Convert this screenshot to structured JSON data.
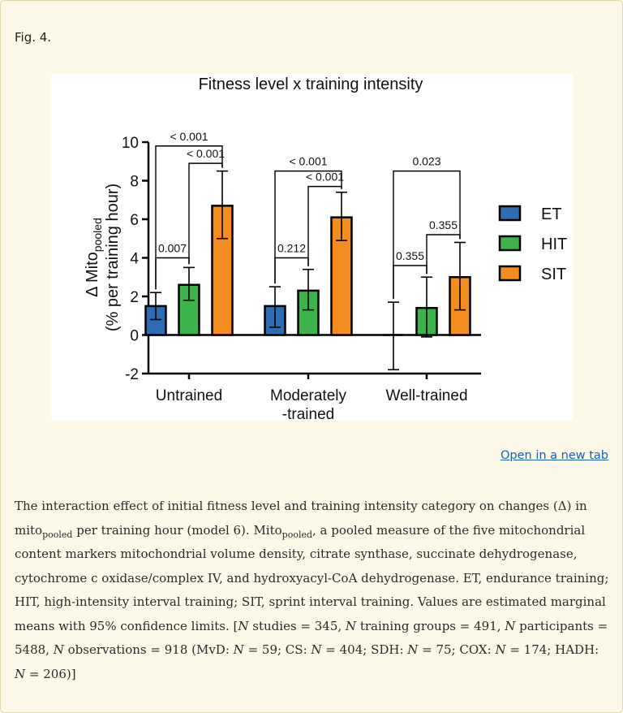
{
  "fig_label": "Fig. 4.",
  "open_link": "Open in a new tab",
  "caption": {
    "p1a": "The interaction effect of initial fitness level and training intensity category on changes (Δ) in mito",
    "p1sub": "pooled",
    "p1b": " per training hour (model 6). Mito",
    "p1sub2": "pooled",
    "p1c": ", a pooled measure of the five mitochondrial content markers mitochondrial volume density, citrate synthase, succinate dehydrogenase, cytochrome c oxidase/complex IV, and hydroxyacyl-CoA dehydrogenase. ET, endurance training; HIT, high-intensity interval training; SIT, sprint interval training. Values are estimated marginal means with 95% confidence limits. [",
    "n": "N",
    "s1": " studies = 345, ",
    "s2": " training groups = 491, ",
    "s3": " participants = 5488, ",
    "s4": " observations = 918 (MvD: ",
    "s5": " = 59; CS: ",
    "s6": " = 404; SDH: ",
    "s7": " = 75; COX: ",
    "s8": " = 174; HADH: ",
    "s9": " = 206)]"
  },
  "chart_data": {
    "type": "bar",
    "title": "Fitness level x training intensity",
    "ylabel_main": "Δ Mito",
    "ylabel_sub": "pooled",
    "ylabel2": "(% per training hour)",
    "ylim": [
      -2,
      10
    ],
    "yticks": [
      -2,
      0,
      2,
      4,
      6,
      8,
      10
    ],
    "categories": [
      "Untrained",
      "Moderately",
      "Well-trained"
    ],
    "category_line2": [
      "",
      "-trained",
      ""
    ],
    "series": [
      {
        "name": "ET",
        "color": "#2e6db4",
        "values": [
          1.5,
          1.5,
          0.0
        ],
        "ci_low": [
          0.8,
          0.4,
          -1.8
        ],
        "ci_high": [
          2.2,
          2.5,
          1.7
        ]
      },
      {
        "name": "HIT",
        "color": "#3cb44b",
        "values": [
          2.6,
          2.3,
          1.4
        ],
        "ci_low": [
          1.8,
          1.3,
          -0.1
        ],
        "ci_high": [
          3.5,
          3.4,
          3.0
        ]
      },
      {
        "name": "SIT",
        "color": "#f58c1f",
        "values": [
          6.7,
          6.1,
          3.0
        ],
        "ci_low": [
          5.0,
          4.9,
          1.3
        ],
        "ci_high": [
          8.5,
          7.4,
          4.8
        ]
      }
    ],
    "comparisons": [
      {
        "group": 0,
        "from": 0,
        "to": 2,
        "p": "< 0.001",
        "level": 9.8
      },
      {
        "group": 0,
        "from": 1,
        "to": 2,
        "p": "< 0.001",
        "level": 8.9
      },
      {
        "group": 0,
        "from": 0,
        "to": 1,
        "p": "0.007",
        "level": 4.0
      },
      {
        "group": 1,
        "from": 0,
        "to": 2,
        "p": "< 0.001",
        "level": 8.5
      },
      {
        "group": 1,
        "from": 1,
        "to": 2,
        "p": "< 0.001",
        "level": 7.7
      },
      {
        "group": 1,
        "from": 0,
        "to": 1,
        "p": "0.212",
        "level": 4.0
      },
      {
        "group": 2,
        "from": 0,
        "to": 2,
        "p": "0.023",
        "level": 8.5
      },
      {
        "group": 2,
        "from": 0,
        "to": 1,
        "p": "0.355",
        "level": 3.6
      },
      {
        "group": 2,
        "from": 1,
        "to": 2,
        "p": "0.355",
        "level": 5.2
      }
    ]
  }
}
